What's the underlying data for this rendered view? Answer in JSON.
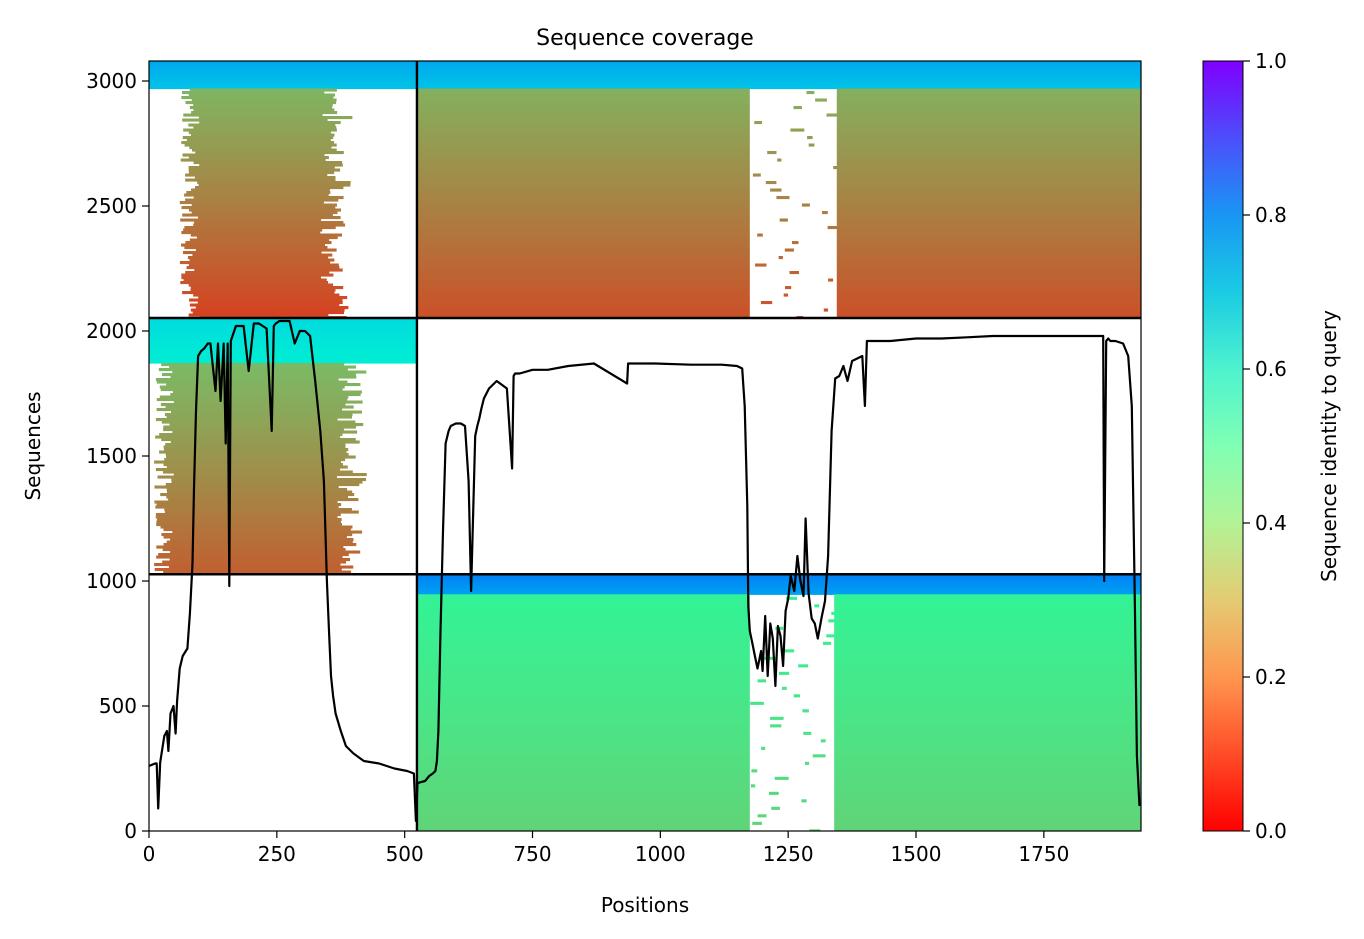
{
  "chart_data": {
    "type": "heatmap",
    "title": "Sequence coverage",
    "xlabel": "Positions",
    "ylabel": "Sequences",
    "xlim": [
      0,
      1940
    ],
    "ylim": [
      0,
      3080
    ],
    "xticks": [
      0,
      250,
      500,
      750,
      1000,
      1250,
      1500,
      1750
    ],
    "xtick_labels": [
      "0",
      "250",
      "500",
      "750",
      "1000",
      "1250",
      "1500",
      "1750"
    ],
    "yticks": [
      0,
      500,
      1000,
      1500,
      2000,
      2500,
      3000
    ],
    "ytick_labels": [
      "0",
      "500",
      "1000",
      "1500",
      "2000",
      "2500",
      "3000"
    ],
    "grid": false,
    "colorbar": {
      "label": "Sequence identity to query",
      "colormap": "rainbow_r",
      "range": [
        0,
        1
      ],
      "ticks": [
        0.0,
        0.2,
        0.4,
        0.6,
        0.8,
        1.0
      ],
      "tick_labels": [
        "0.0",
        "0.2",
        "0.4",
        "0.6",
        "0.8",
        "1.0"
      ]
    },
    "chain_boundaries_x": [
      524
    ],
    "block_boundaries_y": [
      1027,
      2052
    ],
    "blocks": [
      {
        "x": [
          0,
          524
        ],
        "y": [
          2052,
          3080
        ],
        "top_rows": 110,
        "top_identity": 0.72,
        "body_identity": [
          0.08,
          0.25
        ],
        "coverage_x": [
          80,
          360
        ]
      },
      {
        "x": [
          524,
          1940
        ],
        "y": [
          2052,
          3080
        ],
        "top_rows": 110,
        "top_identity": 0.72,
        "body_identity": [
          0.1,
          0.24
        ],
        "gap_x": [
          1175,
          1345
        ]
      },
      {
        "x": [
          0,
          524
        ],
        "y": [
          1027,
          2052
        ],
        "top_rows": 180,
        "top_identity": 0.62,
        "body_identity": [
          0.12,
          0.26
        ],
        "coverage_x": [
          30,
          390
        ]
      },
      {
        "x": [
          524,
          1940
        ],
        "y": [
          0,
          1027
        ],
        "top_rows": 80,
        "top_identity": 0.78,
        "body_identity": [
          0.31,
          0.4
        ],
        "gap_x": [
          1175,
          1340
        ]
      }
    ],
    "coverage_line": {
      "color": "#000000",
      "x": [
        0,
        12,
        15,
        18,
        22,
        30,
        35,
        38,
        42,
        48,
        52,
        55,
        60,
        66,
        75,
        80,
        85,
        88,
        92,
        96,
        102,
        108,
        115,
        120,
        130,
        135,
        140,
        146,
        150,
        154,
        157,
        160,
        170,
        185,
        195,
        205,
        215,
        230,
        240,
        244,
        248,
        255,
        265,
        275,
        285,
        295,
        305,
        315,
        325,
        335,
        342,
        348,
        352,
        356,
        360,
        365,
        375,
        385,
        400,
        420,
        450,
        480,
        505,
        518,
        522,
        525,
        530,
        540,
        548,
        555,
        560,
        563,
        566,
        570,
        575,
        580,
        586,
        590,
        600,
        610,
        618,
        625,
        630,
        638,
        642,
        646,
        650,
        655,
        665,
        680,
        700,
        710,
        713,
        716,
        725,
        750,
        780,
        820,
        870,
        935,
        937,
        940,
        990,
        1060,
        1120,
        1150,
        1160,
        1165,
        1170,
        1172,
        1175,
        1180,
        1185,
        1190,
        1197,
        1200,
        1205,
        1210,
        1215,
        1220,
        1225,
        1230,
        1235,
        1240,
        1245,
        1250,
        1255,
        1262,
        1268,
        1274,
        1280,
        1284,
        1290,
        1296,
        1302,
        1308,
        1315,
        1322,
        1328,
        1335,
        1342,
        1350,
        1358,
        1366,
        1375,
        1385,
        1395,
        1400,
        1404,
        1420,
        1450,
        1500,
        1550,
        1600,
        1650,
        1700,
        1750,
        1800,
        1840,
        1866,
        1868,
        1872,
        1876,
        1880,
        1890,
        1905,
        1915,
        1922,
        1928,
        1932,
        1937,
        1939
      ],
      "y": [
        260,
        270,
        270,
        90,
        275,
        380,
        400,
        320,
        470,
        500,
        390,
        520,
        650,
        700,
        730,
        870,
        1070,
        1370,
        1680,
        1900,
        1920,
        1930,
        1950,
        1950,
        1760,
        1950,
        1720,
        1950,
        1550,
        1950,
        980,
        1960,
        2020,
        2020,
        1840,
        2030,
        2030,
        2010,
        1600,
        2020,
        2030,
        2040,
        2040,
        2040,
        1950,
        2000,
        2000,
        1980,
        1800,
        1600,
        1400,
        1000,
        800,
        620,
        540,
        470,
        400,
        340,
        310,
        280,
        270,
        250,
        240,
        230,
        40,
        190,
        195,
        200,
        220,
        230,
        240,
        280,
        400,
        800,
        1200,
        1550,
        1600,
        1620,
        1630,
        1630,
        1620,
        1400,
        960,
        1580,
        1620,
        1650,
        1690,
        1730,
        1770,
        1800,
        1770,
        1450,
        1820,
        1830,
        1830,
        1845,
        1845,
        1860,
        1870,
        1790,
        1870,
        1870,
        1870,
        1865,
        1865,
        1860,
        1850,
        1700,
        1300,
        900,
        800,
        750,
        700,
        650,
        720,
        640,
        860,
        620,
        830,
        770,
        580,
        820,
        780,
        660,
        880,
        930,
        1020,
        960,
        1100,
        1000,
        940,
        1250,
        950,
        850,
        830,
        770,
        850,
        920,
        1100,
        1600,
        1810,
        1820,
        1860,
        1800,
        1880,
        1890,
        1900,
        1700,
        1960,
        1960,
        1960,
        1970,
        1970,
        1975,
        1980,
        1980,
        1980,
        1980,
        1980,
        1980,
        1000,
        1960,
        1970,
        1960,
        1960,
        1950,
        1900,
        1700,
        900,
        300,
        100
      ]
    }
  }
}
